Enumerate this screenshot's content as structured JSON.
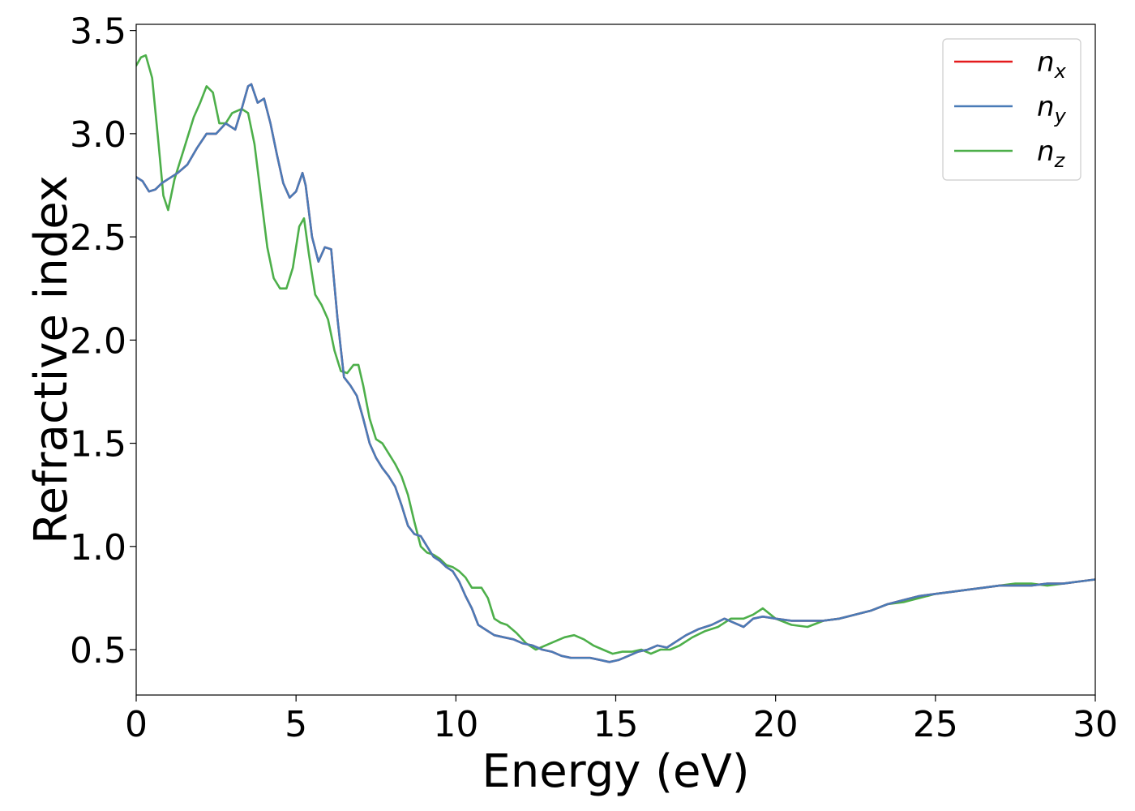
{
  "chart_data": {
    "type": "line",
    "title": "",
    "xlabel": "Energy (eV)",
    "ylabel": "Refractive index",
    "xlim": [
      0,
      30
    ],
    "ylim": [
      0.28,
      3.53
    ],
    "xticks": [
      "0",
      "5",
      "10",
      "15",
      "20",
      "25",
      "30"
    ],
    "yticks": [
      "0.5",
      "1.0",
      "1.5",
      "2.0",
      "2.5",
      "3.0",
      "3.5"
    ],
    "grid": false,
    "legend_position": "top-right",
    "series": [
      {
        "name": "n_x",
        "label_main": "n",
        "label_sub": "x",
        "color": "#e41a1c",
        "x": [
          0,
          0.2,
          0.4,
          0.6,
          0.8,
          1.0,
          1.3,
          1.6,
          1.9,
          2.2,
          2.5,
          2.8,
          3.1,
          3.3,
          3.5,
          3.6,
          3.8,
          4.0,
          4.2,
          4.4,
          4.6,
          4.8,
          5.0,
          5.2,
          5.3,
          5.5,
          5.7,
          5.9,
          6.1,
          6.3,
          6.5,
          6.7,
          6.9,
          7.1,
          7.3,
          7.5,
          7.7,
          7.9,
          8.1,
          8.3,
          8.5,
          8.7,
          8.9,
          9.1,
          9.3,
          9.5,
          9.7,
          9.9,
          10.1,
          10.3,
          10.5,
          10.7,
          10.9,
          11.2,
          11.5,
          11.8,
          12.1,
          12.4,
          12.7,
          13.0,
          13.3,
          13.6,
          13.9,
          14.2,
          14.5,
          14.8,
          15.1,
          15.4,
          15.7,
          16.0,
          16.3,
          16.6,
          16.9,
          17.2,
          17.6,
          18.0,
          18.4,
          18.7,
          19.0,
          19.3,
          19.6,
          20.0,
          20.5,
          21.0,
          21.5,
          22.0,
          22.5,
          23.0,
          23.5,
          24.0,
          24.5,
          25.0,
          25.5,
          26.0,
          26.5,
          27.0,
          27.5,
          28.0,
          28.5,
          29.0,
          29.5,
          30.0
        ],
        "y": [
          2.79,
          2.77,
          2.72,
          2.73,
          2.76,
          2.78,
          2.81,
          2.85,
          2.93,
          3.0,
          3.0,
          3.05,
          3.02,
          3.12,
          3.23,
          3.24,
          3.15,
          3.17,
          3.05,
          2.9,
          2.76,
          2.69,
          2.72,
          2.81,
          2.75,
          2.5,
          2.38,
          2.45,
          2.44,
          2.1,
          1.82,
          1.78,
          1.73,
          1.62,
          1.5,
          1.43,
          1.38,
          1.34,
          1.29,
          1.2,
          1.1,
          1.06,
          1.05,
          1.0,
          0.95,
          0.93,
          0.9,
          0.88,
          0.83,
          0.76,
          0.7,
          0.62,
          0.6,
          0.57,
          0.56,
          0.55,
          0.53,
          0.52,
          0.5,
          0.49,
          0.47,
          0.46,
          0.46,
          0.46,
          0.45,
          0.44,
          0.45,
          0.47,
          0.49,
          0.5,
          0.52,
          0.51,
          0.54,
          0.57,
          0.6,
          0.62,
          0.65,
          0.63,
          0.61,
          0.65,
          0.66,
          0.65,
          0.64,
          0.64,
          0.64,
          0.65,
          0.67,
          0.69,
          0.72,
          0.74,
          0.76,
          0.77,
          0.78,
          0.79,
          0.8,
          0.81,
          0.81,
          0.81,
          0.82,
          0.82,
          0.83,
          0.84
        ]
      },
      {
        "name": "n_y",
        "label_main": "n",
        "label_sub": "y",
        "color": "#4a7bb7",
        "x": [
          0,
          0.2,
          0.4,
          0.6,
          0.8,
          1.0,
          1.3,
          1.6,
          1.9,
          2.2,
          2.5,
          2.8,
          3.1,
          3.3,
          3.5,
          3.6,
          3.8,
          4.0,
          4.2,
          4.4,
          4.6,
          4.8,
          5.0,
          5.2,
          5.3,
          5.5,
          5.7,
          5.9,
          6.1,
          6.3,
          6.5,
          6.7,
          6.9,
          7.1,
          7.3,
          7.5,
          7.7,
          7.9,
          8.1,
          8.3,
          8.5,
          8.7,
          8.9,
          9.1,
          9.3,
          9.5,
          9.7,
          9.9,
          10.1,
          10.3,
          10.5,
          10.7,
          10.9,
          11.2,
          11.5,
          11.8,
          12.1,
          12.4,
          12.7,
          13.0,
          13.3,
          13.6,
          13.9,
          14.2,
          14.5,
          14.8,
          15.1,
          15.4,
          15.7,
          16.0,
          16.3,
          16.6,
          16.9,
          17.2,
          17.6,
          18.0,
          18.4,
          18.7,
          19.0,
          19.3,
          19.6,
          20.0,
          20.5,
          21.0,
          21.5,
          22.0,
          22.5,
          23.0,
          23.5,
          24.0,
          24.5,
          25.0,
          25.5,
          26.0,
          26.5,
          27.0,
          27.5,
          28.0,
          28.5,
          29.0,
          29.5,
          30.0
        ],
        "y": [
          2.79,
          2.77,
          2.72,
          2.73,
          2.76,
          2.78,
          2.81,
          2.85,
          2.93,
          3.0,
          3.0,
          3.05,
          3.02,
          3.12,
          3.23,
          3.24,
          3.15,
          3.17,
          3.05,
          2.9,
          2.76,
          2.69,
          2.72,
          2.81,
          2.75,
          2.5,
          2.38,
          2.45,
          2.44,
          2.1,
          1.82,
          1.78,
          1.73,
          1.62,
          1.5,
          1.43,
          1.38,
          1.34,
          1.29,
          1.2,
          1.1,
          1.06,
          1.05,
          1.0,
          0.95,
          0.93,
          0.9,
          0.88,
          0.83,
          0.76,
          0.7,
          0.62,
          0.6,
          0.57,
          0.56,
          0.55,
          0.53,
          0.52,
          0.5,
          0.49,
          0.47,
          0.46,
          0.46,
          0.46,
          0.45,
          0.44,
          0.45,
          0.47,
          0.49,
          0.5,
          0.52,
          0.51,
          0.54,
          0.57,
          0.6,
          0.62,
          0.65,
          0.63,
          0.61,
          0.65,
          0.66,
          0.65,
          0.64,
          0.64,
          0.64,
          0.65,
          0.67,
          0.69,
          0.72,
          0.74,
          0.76,
          0.77,
          0.78,
          0.79,
          0.8,
          0.81,
          0.81,
          0.81,
          0.82,
          0.82,
          0.83,
          0.84
        ]
      },
      {
        "name": "n_z",
        "label_main": "n",
        "label_sub": "z",
        "color": "#4daf4a",
        "x": [
          0,
          0.15,
          0.3,
          0.5,
          0.7,
          0.85,
          1.0,
          1.2,
          1.5,
          1.8,
          2.0,
          2.2,
          2.4,
          2.6,
          2.8,
          3.0,
          3.3,
          3.5,
          3.7,
          3.9,
          4.1,
          4.3,
          4.5,
          4.7,
          4.9,
          5.1,
          5.25,
          5.4,
          5.6,
          5.8,
          6.0,
          6.2,
          6.4,
          6.6,
          6.8,
          6.95,
          7.1,
          7.3,
          7.5,
          7.7,
          7.9,
          8.1,
          8.3,
          8.5,
          8.7,
          8.9,
          9.1,
          9.3,
          9.5,
          9.7,
          9.9,
          10.1,
          10.3,
          10.5,
          10.8,
          11.0,
          11.2,
          11.4,
          11.6,
          11.9,
          12.2,
          12.5,
          12.8,
          13.1,
          13.4,
          13.7,
          14.0,
          14.3,
          14.6,
          14.9,
          15.2,
          15.5,
          15.8,
          16.1,
          16.4,
          16.7,
          17.0,
          17.4,
          17.8,
          18.2,
          18.6,
          19.0,
          19.3,
          19.6,
          20.0,
          20.5,
          21.0,
          21.5,
          22.0,
          22.5,
          23.0,
          23.5,
          24.0,
          24.5,
          25.0,
          25.5,
          26.0,
          26.5,
          27.0,
          27.5,
          28.0,
          28.5,
          29.0,
          29.5,
          30.0
        ],
        "y": [
          3.33,
          3.37,
          3.38,
          3.27,
          2.95,
          2.7,
          2.63,
          2.78,
          2.93,
          3.08,
          3.15,
          3.23,
          3.2,
          3.05,
          3.05,
          3.1,
          3.12,
          3.1,
          2.95,
          2.7,
          2.45,
          2.3,
          2.25,
          2.25,
          2.35,
          2.55,
          2.59,
          2.42,
          2.22,
          2.17,
          2.1,
          1.95,
          1.85,
          1.84,
          1.88,
          1.88,
          1.78,
          1.62,
          1.52,
          1.5,
          1.45,
          1.4,
          1.34,
          1.25,
          1.12,
          1.0,
          0.97,
          0.96,
          0.94,
          0.91,
          0.9,
          0.88,
          0.85,
          0.8,
          0.8,
          0.75,
          0.65,
          0.63,
          0.62,
          0.58,
          0.53,
          0.5,
          0.52,
          0.54,
          0.56,
          0.57,
          0.55,
          0.52,
          0.5,
          0.48,
          0.49,
          0.49,
          0.5,
          0.48,
          0.5,
          0.5,
          0.52,
          0.56,
          0.59,
          0.61,
          0.65,
          0.65,
          0.67,
          0.7,
          0.65,
          0.62,
          0.61,
          0.64,
          0.65,
          0.67,
          0.69,
          0.72,
          0.73,
          0.75,
          0.77,
          0.78,
          0.79,
          0.8,
          0.81,
          0.82,
          0.82,
          0.81,
          0.82,
          0.83,
          0.84
        ]
      }
    ]
  }
}
